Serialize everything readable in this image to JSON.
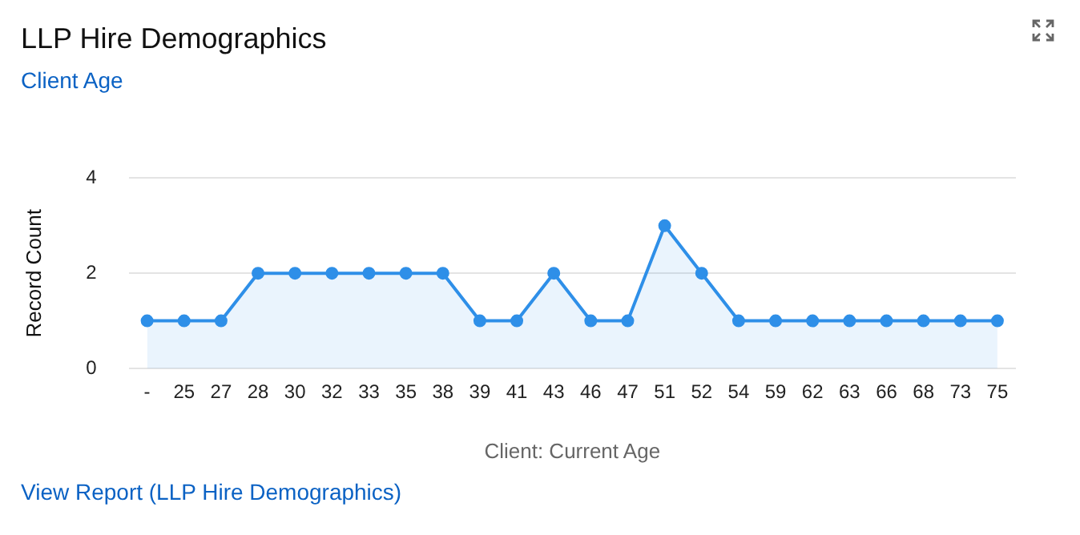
{
  "chart_data": {
    "type": "area",
    "title": "LLP Hire Demographics",
    "subtitle": "Client Age",
    "xlabel": "Client: Current Age",
    "ylabel": "Record Count",
    "categories": [
      "-",
      "25",
      "27",
      "28",
      "30",
      "32",
      "33",
      "35",
      "38",
      "39",
      "41",
      "43",
      "46",
      "47",
      "51",
      "52",
      "54",
      "59",
      "62",
      "63",
      "66",
      "68",
      "73",
      "75"
    ],
    "series": [
      {
        "color": "#2e8fe8",
        "values": [
          1,
          1,
          1,
          2,
          2,
          2,
          2,
          2,
          2,
          1,
          1,
          2,
          1,
          1,
          3,
          2,
          1,
          1,
          1,
          1,
          1,
          1,
          1,
          1
        ]
      }
    ],
    "ylim": [
      0,
      4
    ],
    "yticks": [
      0,
      2,
      4
    ],
    "grid": "y",
    "legend": false,
    "marker": "circle",
    "line_style": "solid",
    "annotations": [
      "View Report (LLP Hire Demographics)"
    ]
  }
}
